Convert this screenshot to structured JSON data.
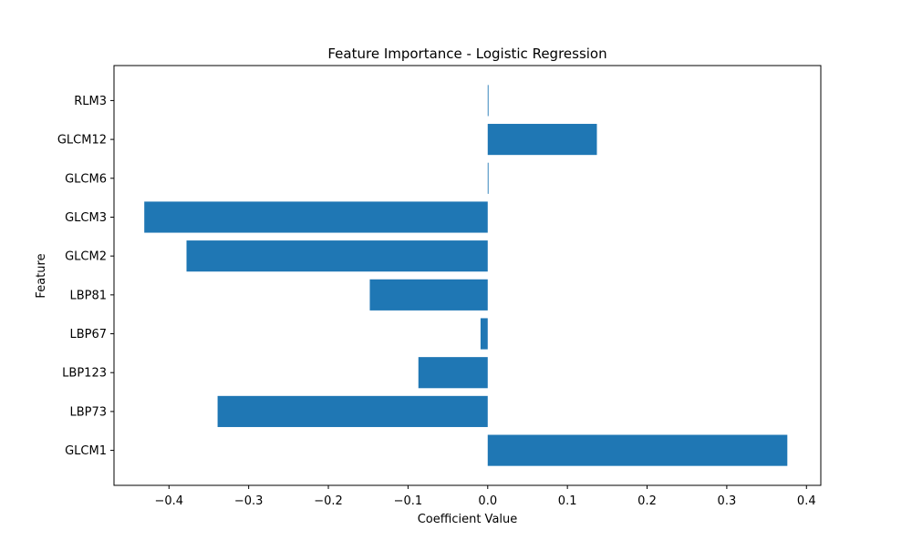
{
  "chart_data": {
    "type": "bar",
    "orientation": "horizontal",
    "title": "Feature Importance - Logistic Regression",
    "xlabel": "Coefficient Value",
    "ylabel": "Feature",
    "categories": [
      "GLCM1",
      "LBP73",
      "LBP123",
      "LBP67",
      "LBP81",
      "GLCM2",
      "GLCM3",
      "GLCM6",
      "GLCM12",
      "RLM3"
    ],
    "values": [
      0.376,
      -0.339,
      -0.087,
      -0.009,
      -0.148,
      -0.378,
      -0.431,
      0.001,
      0.137,
      0.001
    ],
    "xlim": [
      -0.469,
      0.418
    ],
    "xticks": [
      -0.4,
      -0.3,
      -0.2,
      -0.1,
      0.0,
      0.1,
      0.2,
      0.3,
      0.4
    ],
    "xtick_labels": [
      "−0.4",
      "−0.3",
      "−0.2",
      "−0.1",
      "0.0",
      "0.1",
      "0.2",
      "0.3",
      "0.4"
    ],
    "bar_color": "#1f77b4",
    "grid": false,
    "legend": false
  }
}
